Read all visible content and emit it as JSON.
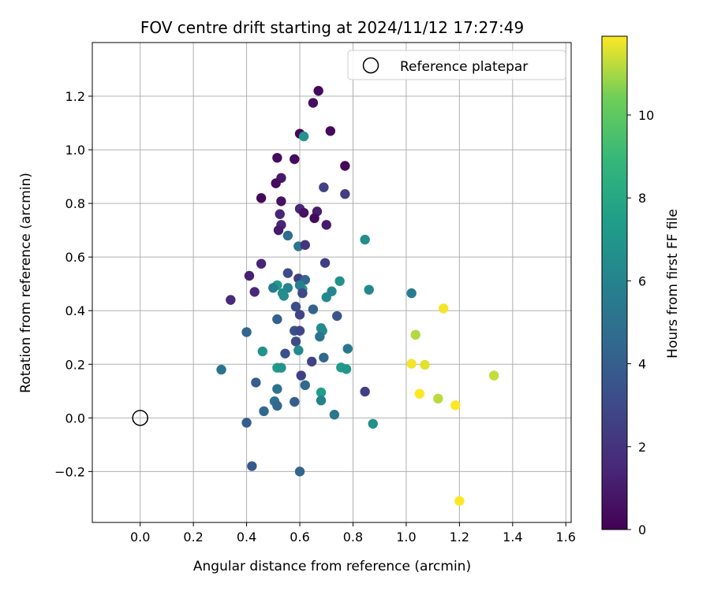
{
  "chart_data": {
    "type": "scatter",
    "title": "FOV centre drift starting at 2024/11/12 17:27:49",
    "xlabel": "Angular distance from reference (arcmin)",
    "ylabel": "Rotation from reference (arcmin)",
    "xlim": [
      -0.18,
      1.62
    ],
    "ylim": [
      -0.39,
      1.4
    ],
    "xticks": [
      "0.0",
      "0.2",
      "0.4",
      "0.6",
      "0.8",
      "1.0",
      "1.2",
      "1.4",
      "1.6"
    ],
    "yticks": [
      "−0.2",
      "0.0",
      "0.2",
      "0.4",
      "0.6",
      "0.8",
      "1.0",
      "1.2"
    ],
    "grid": true,
    "legend_position": "top-right",
    "reference": {
      "name": "Reference platepar",
      "x": 0.0,
      "y": 0.0
    },
    "colorbar": {
      "label": "Hours from first FF file",
      "range": [
        0,
        11.9
      ],
      "ticks": [
        "0",
        "2",
        "4",
        "6",
        "8",
        "10"
      ],
      "colormap": "viridis"
    },
    "points": [
      {
        "x": 0.67,
        "y": 1.22,
        "h": 0.3
      },
      {
        "x": 0.65,
        "y": 1.175,
        "h": 0.5
      },
      {
        "x": 0.6,
        "y": 1.06,
        "h": 0.2
      },
      {
        "x": 0.715,
        "y": 1.07,
        "h": 0.3
      },
      {
        "x": 0.615,
        "y": 1.05,
        "h": 6.9
      },
      {
        "x": 0.515,
        "y": 0.97,
        "h": 0.4
      },
      {
        "x": 0.58,
        "y": 0.965,
        "h": 0.4
      },
      {
        "x": 0.77,
        "y": 0.94,
        "h": 0.2
      },
      {
        "x": 0.53,
        "y": 0.895,
        "h": 0.9
      },
      {
        "x": 0.51,
        "y": 0.875,
        "h": 0.4
      },
      {
        "x": 0.69,
        "y": 0.86,
        "h": 2.6
      },
      {
        "x": 0.77,
        "y": 0.835,
        "h": 2.5
      },
      {
        "x": 0.455,
        "y": 0.82,
        "h": 0.3
      },
      {
        "x": 0.53,
        "y": 0.808,
        "h": 0.6
      },
      {
        "x": 0.6,
        "y": 0.78,
        "h": 1.5
      },
      {
        "x": 0.615,
        "y": 0.765,
        "h": 0.6
      },
      {
        "x": 0.665,
        "y": 0.77,
        "h": 1.1
      },
      {
        "x": 0.525,
        "y": 0.76,
        "h": 1.4
      },
      {
        "x": 0.655,
        "y": 0.745,
        "h": 0.3
      },
      {
        "x": 0.7,
        "y": 0.72,
        "h": 1.0
      },
      {
        "x": 0.53,
        "y": 0.72,
        "h": 1.5
      },
      {
        "x": 0.52,
        "y": 0.7,
        "h": 1.0
      },
      {
        "x": 0.555,
        "y": 0.68,
        "h": 4.8
      },
      {
        "x": 0.595,
        "y": 0.64,
        "h": 5.2
      },
      {
        "x": 0.62,
        "y": 0.645,
        "h": 2.0
      },
      {
        "x": 0.845,
        "y": 0.665,
        "h": 6.6
      },
      {
        "x": 0.455,
        "y": 0.575,
        "h": 1.4
      },
      {
        "x": 0.695,
        "y": 0.578,
        "h": 2.5
      },
      {
        "x": 0.41,
        "y": 0.53,
        "h": 1.2
      },
      {
        "x": 0.555,
        "y": 0.54,
        "h": 3.0
      },
      {
        "x": 0.595,
        "y": 0.52,
        "h": 2.5
      },
      {
        "x": 0.62,
        "y": 0.515,
        "h": 4.4
      },
      {
        "x": 0.75,
        "y": 0.51,
        "h": 6.8
      },
      {
        "x": 0.515,
        "y": 0.495,
        "h": 7.2
      },
      {
        "x": 0.5,
        "y": 0.485,
        "h": 5.6
      },
      {
        "x": 0.555,
        "y": 0.485,
        "h": 6.0
      },
      {
        "x": 0.61,
        "y": 0.48,
        "h": 7.1
      },
      {
        "x": 0.6,
        "y": 0.495,
        "h": 5.8
      },
      {
        "x": 0.86,
        "y": 0.478,
        "h": 6.2
      },
      {
        "x": 0.72,
        "y": 0.472,
        "h": 6.2
      },
      {
        "x": 0.535,
        "y": 0.465,
        "h": 6.5
      },
      {
        "x": 0.54,
        "y": 0.455,
        "h": 6.6
      },
      {
        "x": 0.43,
        "y": 0.47,
        "h": 1.5
      },
      {
        "x": 0.61,
        "y": 0.465,
        "h": 2.9
      },
      {
        "x": 1.02,
        "y": 0.465,
        "h": 5.6
      },
      {
        "x": 0.7,
        "y": 0.45,
        "h": 6.3
      },
      {
        "x": 0.34,
        "y": 0.44,
        "h": 1.6
      },
      {
        "x": 0.585,
        "y": 0.415,
        "h": 3.2
      },
      {
        "x": 1.14,
        "y": 0.408,
        "h": 11.8
      },
      {
        "x": 0.65,
        "y": 0.405,
        "h": 4.2
      },
      {
        "x": 0.6,
        "y": 0.385,
        "h": 2.8
      },
      {
        "x": 0.74,
        "y": 0.38,
        "h": 3.5
      },
      {
        "x": 0.515,
        "y": 0.368,
        "h": 4.1
      },
      {
        "x": 0.58,
        "y": 0.325,
        "h": 3.4
      },
      {
        "x": 0.6,
        "y": 0.325,
        "h": 2.8
      },
      {
        "x": 0.68,
        "y": 0.335,
        "h": 6.6
      },
      {
        "x": 0.685,
        "y": 0.325,
        "h": 6.4
      },
      {
        "x": 0.4,
        "y": 0.32,
        "h": 4.3
      },
      {
        "x": 1.035,
        "y": 0.31,
        "h": 11.1
      },
      {
        "x": 0.675,
        "y": 0.303,
        "h": 5.1
      },
      {
        "x": 0.585,
        "y": 0.285,
        "h": 3.1
      },
      {
        "x": 0.78,
        "y": 0.258,
        "h": 5.4
      },
      {
        "x": 0.46,
        "y": 0.248,
        "h": 6.8
      },
      {
        "x": 0.595,
        "y": 0.252,
        "h": 6.4
      },
      {
        "x": 0.545,
        "y": 0.24,
        "h": 3.3
      },
      {
        "x": 0.69,
        "y": 0.225,
        "h": 4.5
      },
      {
        "x": 0.645,
        "y": 0.21,
        "h": 2.6
      },
      {
        "x": 1.02,
        "y": 0.202,
        "h": 11.8
      },
      {
        "x": 1.07,
        "y": 0.198,
        "h": 11.6
      },
      {
        "x": 0.305,
        "y": 0.18,
        "h": 5.1
      },
      {
        "x": 0.515,
        "y": 0.187,
        "h": 7.4
      },
      {
        "x": 0.53,
        "y": 0.187,
        "h": 6.9
      },
      {
        "x": 0.755,
        "y": 0.188,
        "h": 7.2
      },
      {
        "x": 0.775,
        "y": 0.182,
        "h": 7.0
      },
      {
        "x": 1.33,
        "y": 0.158,
        "h": 11.3
      },
      {
        "x": 0.605,
        "y": 0.158,
        "h": 2.6
      },
      {
        "x": 0.435,
        "y": 0.132,
        "h": 4.0
      },
      {
        "x": 0.62,
        "y": 0.122,
        "h": 4.5
      },
      {
        "x": 0.515,
        "y": 0.108,
        "h": 5.1
      },
      {
        "x": 0.845,
        "y": 0.098,
        "h": 2.5
      },
      {
        "x": 0.68,
        "y": 0.095,
        "h": 7.5
      },
      {
        "x": 1.05,
        "y": 0.09,
        "h": 11.9
      },
      {
        "x": 1.12,
        "y": 0.072,
        "h": 11.2
      },
      {
        "x": 0.68,
        "y": 0.065,
        "h": 5.9
      },
      {
        "x": 0.505,
        "y": 0.062,
        "h": 4.9
      },
      {
        "x": 0.58,
        "y": 0.06,
        "h": 4.0
      },
      {
        "x": 0.515,
        "y": 0.045,
        "h": 4.4
      },
      {
        "x": 1.185,
        "y": 0.047,
        "h": 11.9
      },
      {
        "x": 0.465,
        "y": 0.025,
        "h": 4.5
      },
      {
        "x": 0.73,
        "y": 0.012,
        "h": 5.3
      },
      {
        "x": 0.4,
        "y": -0.018,
        "h": 4.0
      },
      {
        "x": 0.875,
        "y": -0.022,
        "h": 6.7
      },
      {
        "x": 0.42,
        "y": -0.18,
        "h": 3.8
      },
      {
        "x": 0.6,
        "y": -0.2,
        "h": 4.4
      },
      {
        "x": 1.2,
        "y": -0.31,
        "h": 11.9
      }
    ]
  }
}
